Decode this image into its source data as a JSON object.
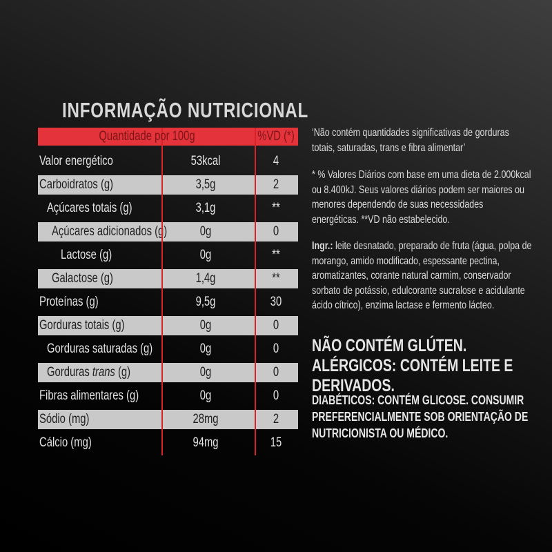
{
  "title": "INFORMAÇÃO NUTRICIONAL",
  "table": {
    "header": [
      "Quantidade por 100g",
      "%VD (*)"
    ],
    "rows": [
      [
        "Valor energético",
        "53kcal",
        "4"
      ],
      [
        "Carboidratos (g)",
        "3,5g",
        "2"
      ],
      [
        "Açúcares totais (g)",
        "3,1g",
        "**"
      ],
      [
        "Açúcares adicionados (g)",
        "0g",
        "0"
      ],
      [
        "Lactose (g)",
        "0g",
        "**"
      ],
      [
        "Galactose (g)",
        "1,4g",
        "**"
      ],
      [
        "Proteínas (g)",
        "9,5g",
        "30"
      ],
      [
        "Gorduras totais (g)",
        "0g",
        "0"
      ],
      [
        "Gorduras saturadas (g)",
        "0g",
        "0"
      ],
      [
        [
          "Gorduras ",
          "trans",
          " (g)"
        ],
        "0g",
        "0"
      ],
      [
        "Fibras alimentares (g)",
        "0g",
        "0"
      ],
      [
        "Sódio (mg)",
        "28mg",
        "2"
      ],
      [
        "Cálcio (mg)",
        "94mg",
        "15"
      ]
    ]
  },
  "notes": {
    "claim": "‘Não contém quantidades significativas de gorduras totais, saturadas, trans e fibra alimentar’",
    "vd": "* % Valores Diários com base em uma dieta de 2.000kcal ou 8.400kJ. Seus valores diários podem ser maiores ou menores dependendo de suas necessidades energéticas. **VD não estabelecido.",
    "ingredients_label": "Ingr.:",
    "ingredients": "leite desnatado, preparado de fruta (água, polpa de morango, amido modificado, espessante pectina, aromatizantes, corante natural carmim, conservador sorbato de potássio, edulcorante sucralose e acidulante ácido cítrico), enzima lactase e fermento lácteo.",
    "allergens": "NÃO CONTÉM GLÚTEN. ALÉRGICOS: CONTÉM LEITE E DERIVADOS.",
    "diabetics": "DIABÉTICOS: CONTÉM GLICOSE. CONSUMIR PREFERENCIALMENTE SOB ORIENTAÇÃO DE NUTRICIONISTA OU MÉDICO."
  }
}
